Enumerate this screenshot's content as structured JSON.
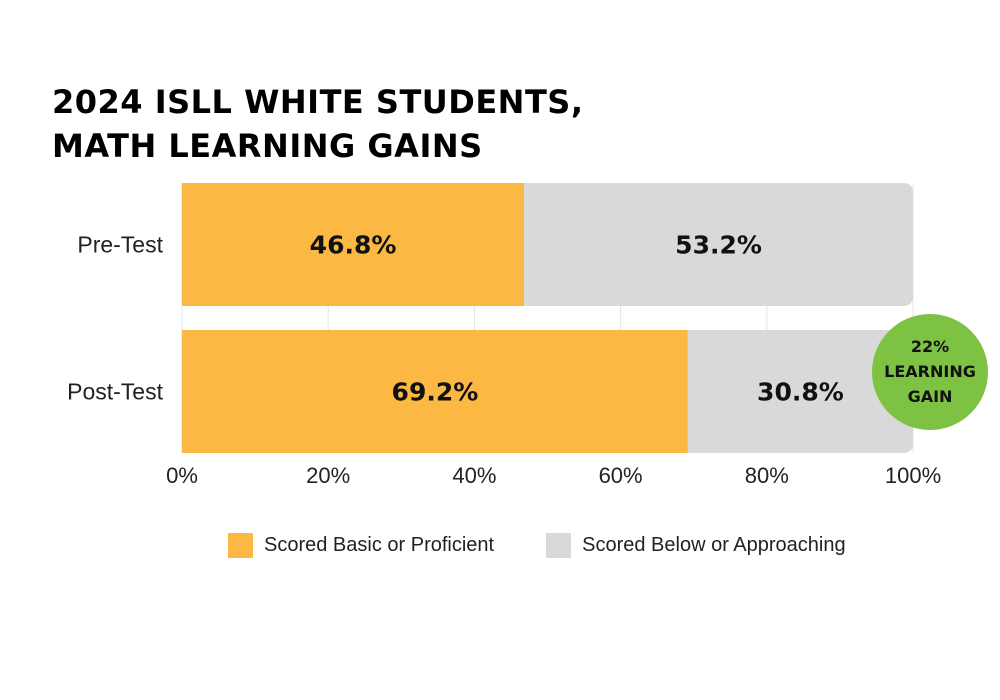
{
  "chart_data": {
    "type": "bar",
    "orientation": "horizontal",
    "stacked": true,
    "title_lines": [
      "2024 ISLL WHITE STUDENTS,",
      "MATH LEARNING GAINS"
    ],
    "categories": [
      "Pre-Test",
      "Post-Test"
    ],
    "series": [
      {
        "name": "Scored Basic or Proficient",
        "values": [
          46.8,
          69.2
        ],
        "labels": [
          "46.8%",
          "69.2%"
        ],
        "color": "#FBB843"
      },
      {
        "name": "Scored Below or Approaching",
        "values": [
          53.2,
          30.8
        ],
        "labels": [
          "53.2%",
          "30.8%"
        ],
        "color": "#D9D9D9"
      }
    ],
    "xlim": [
      0,
      100
    ],
    "x_ticks": [
      0,
      20,
      40,
      60,
      80,
      100
    ],
    "x_tick_labels": [
      "0%",
      "20%",
      "40%",
      "60%",
      "80%",
      "100%"
    ],
    "grid": true,
    "legend_position": "bottom",
    "annotation": {
      "lines": [
        "22%",
        "LEARNING",
        "GAIN"
      ],
      "color": "#7DC242"
    }
  }
}
